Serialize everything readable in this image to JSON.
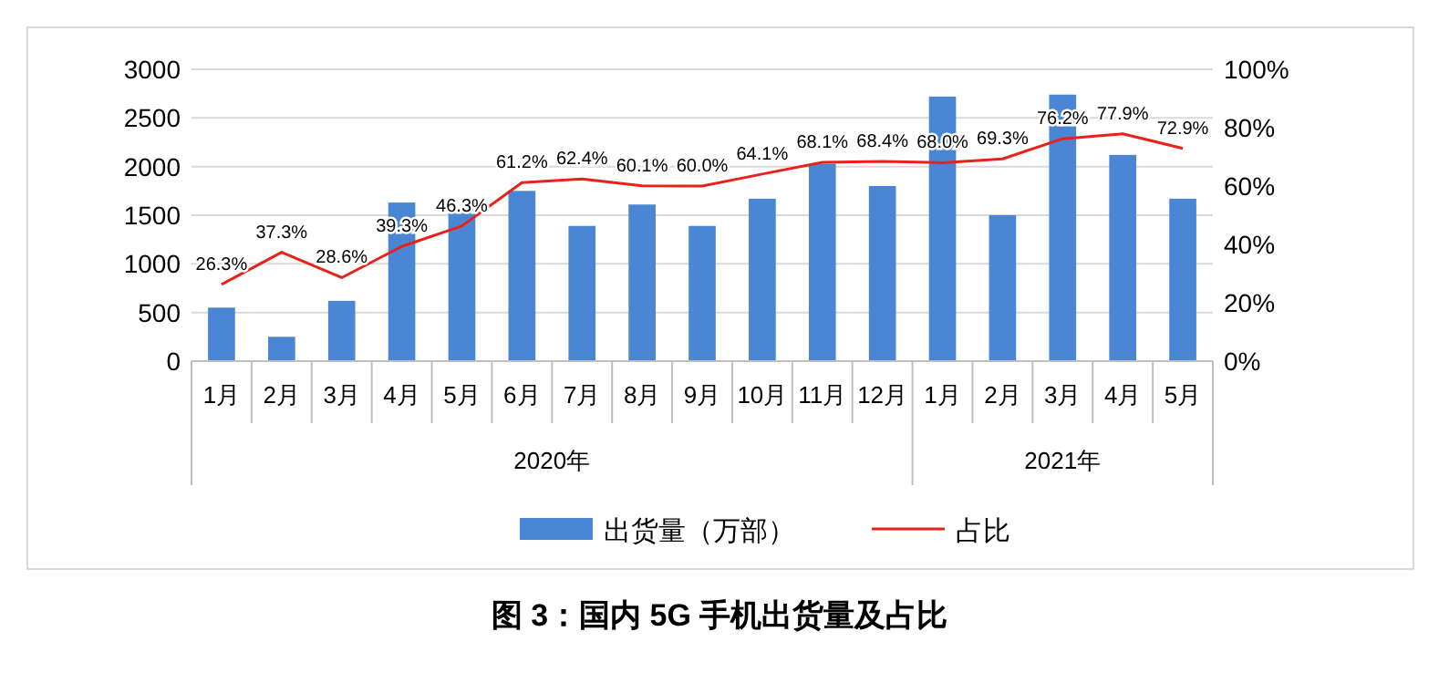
{
  "chart_data": {
    "type": "bar",
    "title": "图 3：国内 5G 手机出货量及占比",
    "categories": [
      "1月",
      "2月",
      "3月",
      "4月",
      "5月",
      "6月",
      "7月",
      "8月",
      "9月",
      "10月",
      "11月",
      "12月",
      "1月",
      "2月",
      "3月",
      "4月",
      "5月"
    ],
    "annotations": [
      "2020年",
      "2021年"
    ],
    "series": [
      {
        "name": "出货量（万部）",
        "color": "#4a86d4",
        "values": [
          550,
          250,
          620,
          1630,
          1560,
          1750,
          1390,
          1610,
          1390,
          1670,
          2030,
          1800,
          2720,
          1500,
          2740,
          2120,
          1670
        ]
      },
      {
        "name": "占比",
        "type": "line",
        "axis": "y2",
        "color": "#e8221b",
        "values": [
          26.3,
          37.3,
          28.6,
          39.3,
          46.3,
          61.2,
          62.4,
          60.1,
          60.0,
          64.1,
          68.1,
          68.4,
          68.0,
          69.3,
          76.2,
          77.9,
          72.9
        ],
        "value_labels": [
          "26.3%",
          "37.3%",
          "28.6%",
          "39.3%",
          "46.3%",
          "61.2%",
          "62.4%",
          "60.1%",
          "60.0%",
          "64.1%",
          "68.1%",
          "68.4%",
          "68.0%",
          "69.3%",
          "76.2%",
          "77.9%",
          "72.9%"
        ]
      }
    ],
    "ylim": [
      0,
      3000
    ],
    "yticks": [
      0,
      500,
      1000,
      1500,
      2000,
      2500,
      3000
    ],
    "y2lim": [
      0,
      100
    ],
    "y2ticks": [
      {
        "value": 0,
        "label": "0%"
      },
      {
        "value": 20,
        "label": "20%"
      },
      {
        "value": 40,
        "label": "40%"
      },
      {
        "value": 60,
        "label": "60%"
      },
      {
        "value": 80,
        "label": "80%"
      },
      {
        "value": 100,
        "label": "100%"
      }
    ],
    "grid": "y",
    "legend": "bottom"
  }
}
